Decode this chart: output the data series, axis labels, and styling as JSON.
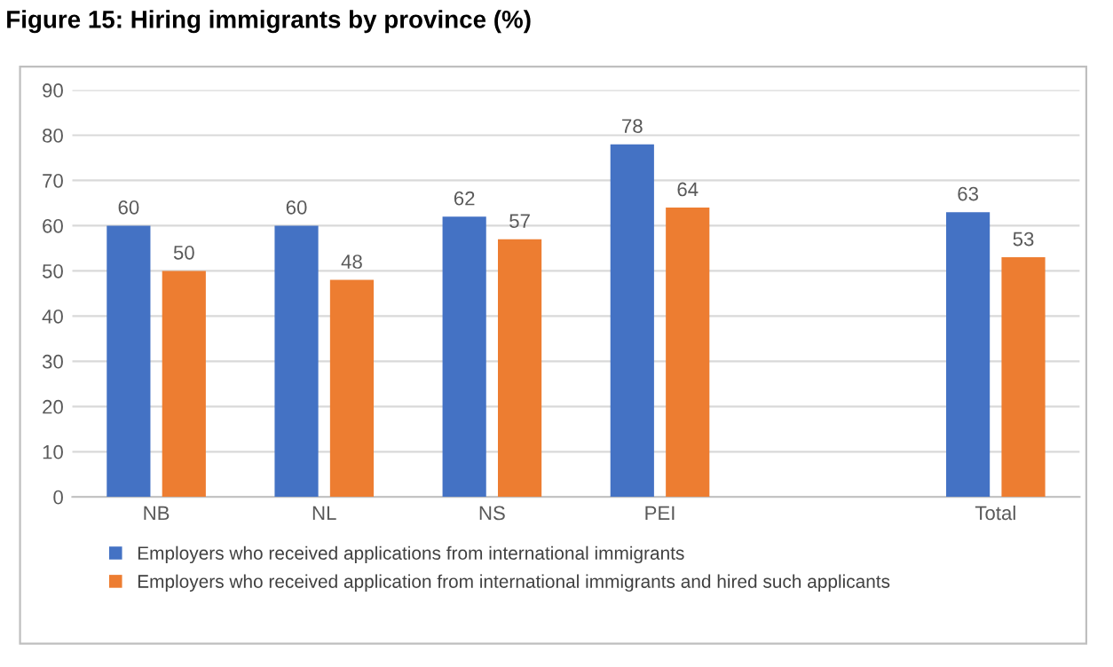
{
  "chart_data": {
    "type": "bar",
    "title": "Figure 15: Hiring immigrants by province (%)",
    "categories": [
      "NB",
      "NL",
      "NS",
      "PEI",
      null,
      "Total"
    ],
    "series": [
      {
        "name": "Employers who received applications from international immigrants",
        "color": "#4472c4",
        "values": [
          60,
          60,
          62,
          78,
          null,
          63
        ]
      },
      {
        "name": "Employers who received application from international immigrants and hired such applicants",
        "color": "#ed7d31",
        "values": [
          50,
          48,
          57,
          64,
          null,
          53
        ]
      }
    ],
    "ylim": [
      0,
      90
    ],
    "yticks": [
      0,
      10,
      20,
      30,
      40,
      50,
      60,
      70,
      80,
      90
    ],
    "grid": "y",
    "legend": "bottom",
    "data_labels": true
  }
}
